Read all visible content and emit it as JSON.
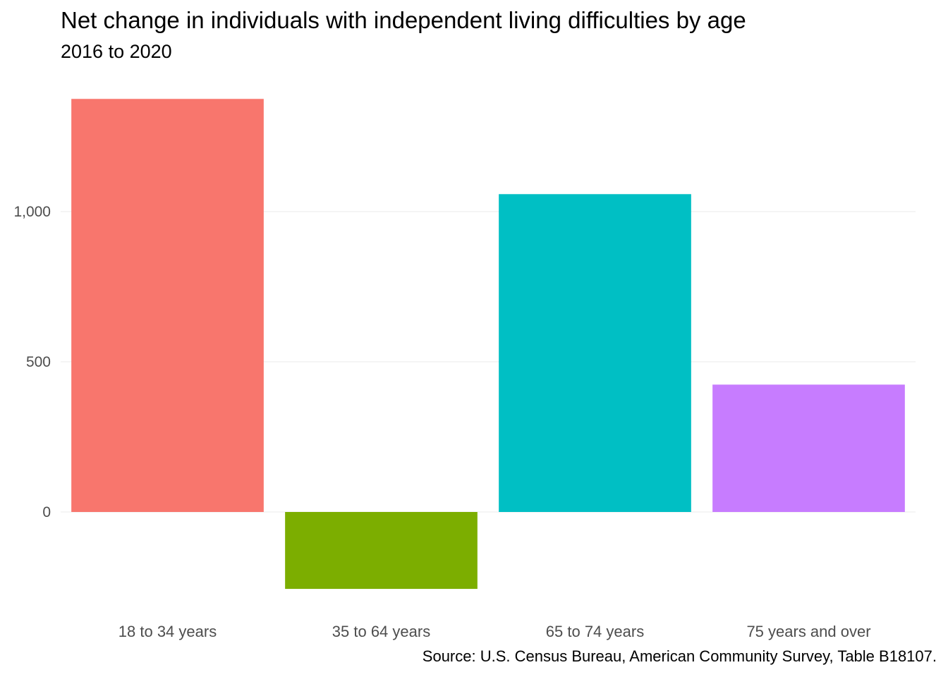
{
  "chart_data": {
    "type": "bar",
    "title": "Net change in individuals with independent living difficulties by age",
    "subtitle": "2016 to 2020",
    "caption": "Source: U.S. Census Bureau, American Community Survey, Table B18107.",
    "categories": [
      "18 to 34 years",
      "35 to 64 years",
      "65 to 74 years",
      "75 years and over"
    ],
    "values": [
      1375,
      -256,
      1058,
      424
    ],
    "colors": [
      "#F8766D",
      "#7CAE00",
      "#00BFC4",
      "#C77CFF"
    ],
    "ylim": [
      -320,
      1420
    ],
    "yticks": [
      0,
      500,
      1000
    ],
    "ytick_labels": [
      "0",
      "500",
      "1,000"
    ],
    "grid": true,
    "legend": "none"
  }
}
